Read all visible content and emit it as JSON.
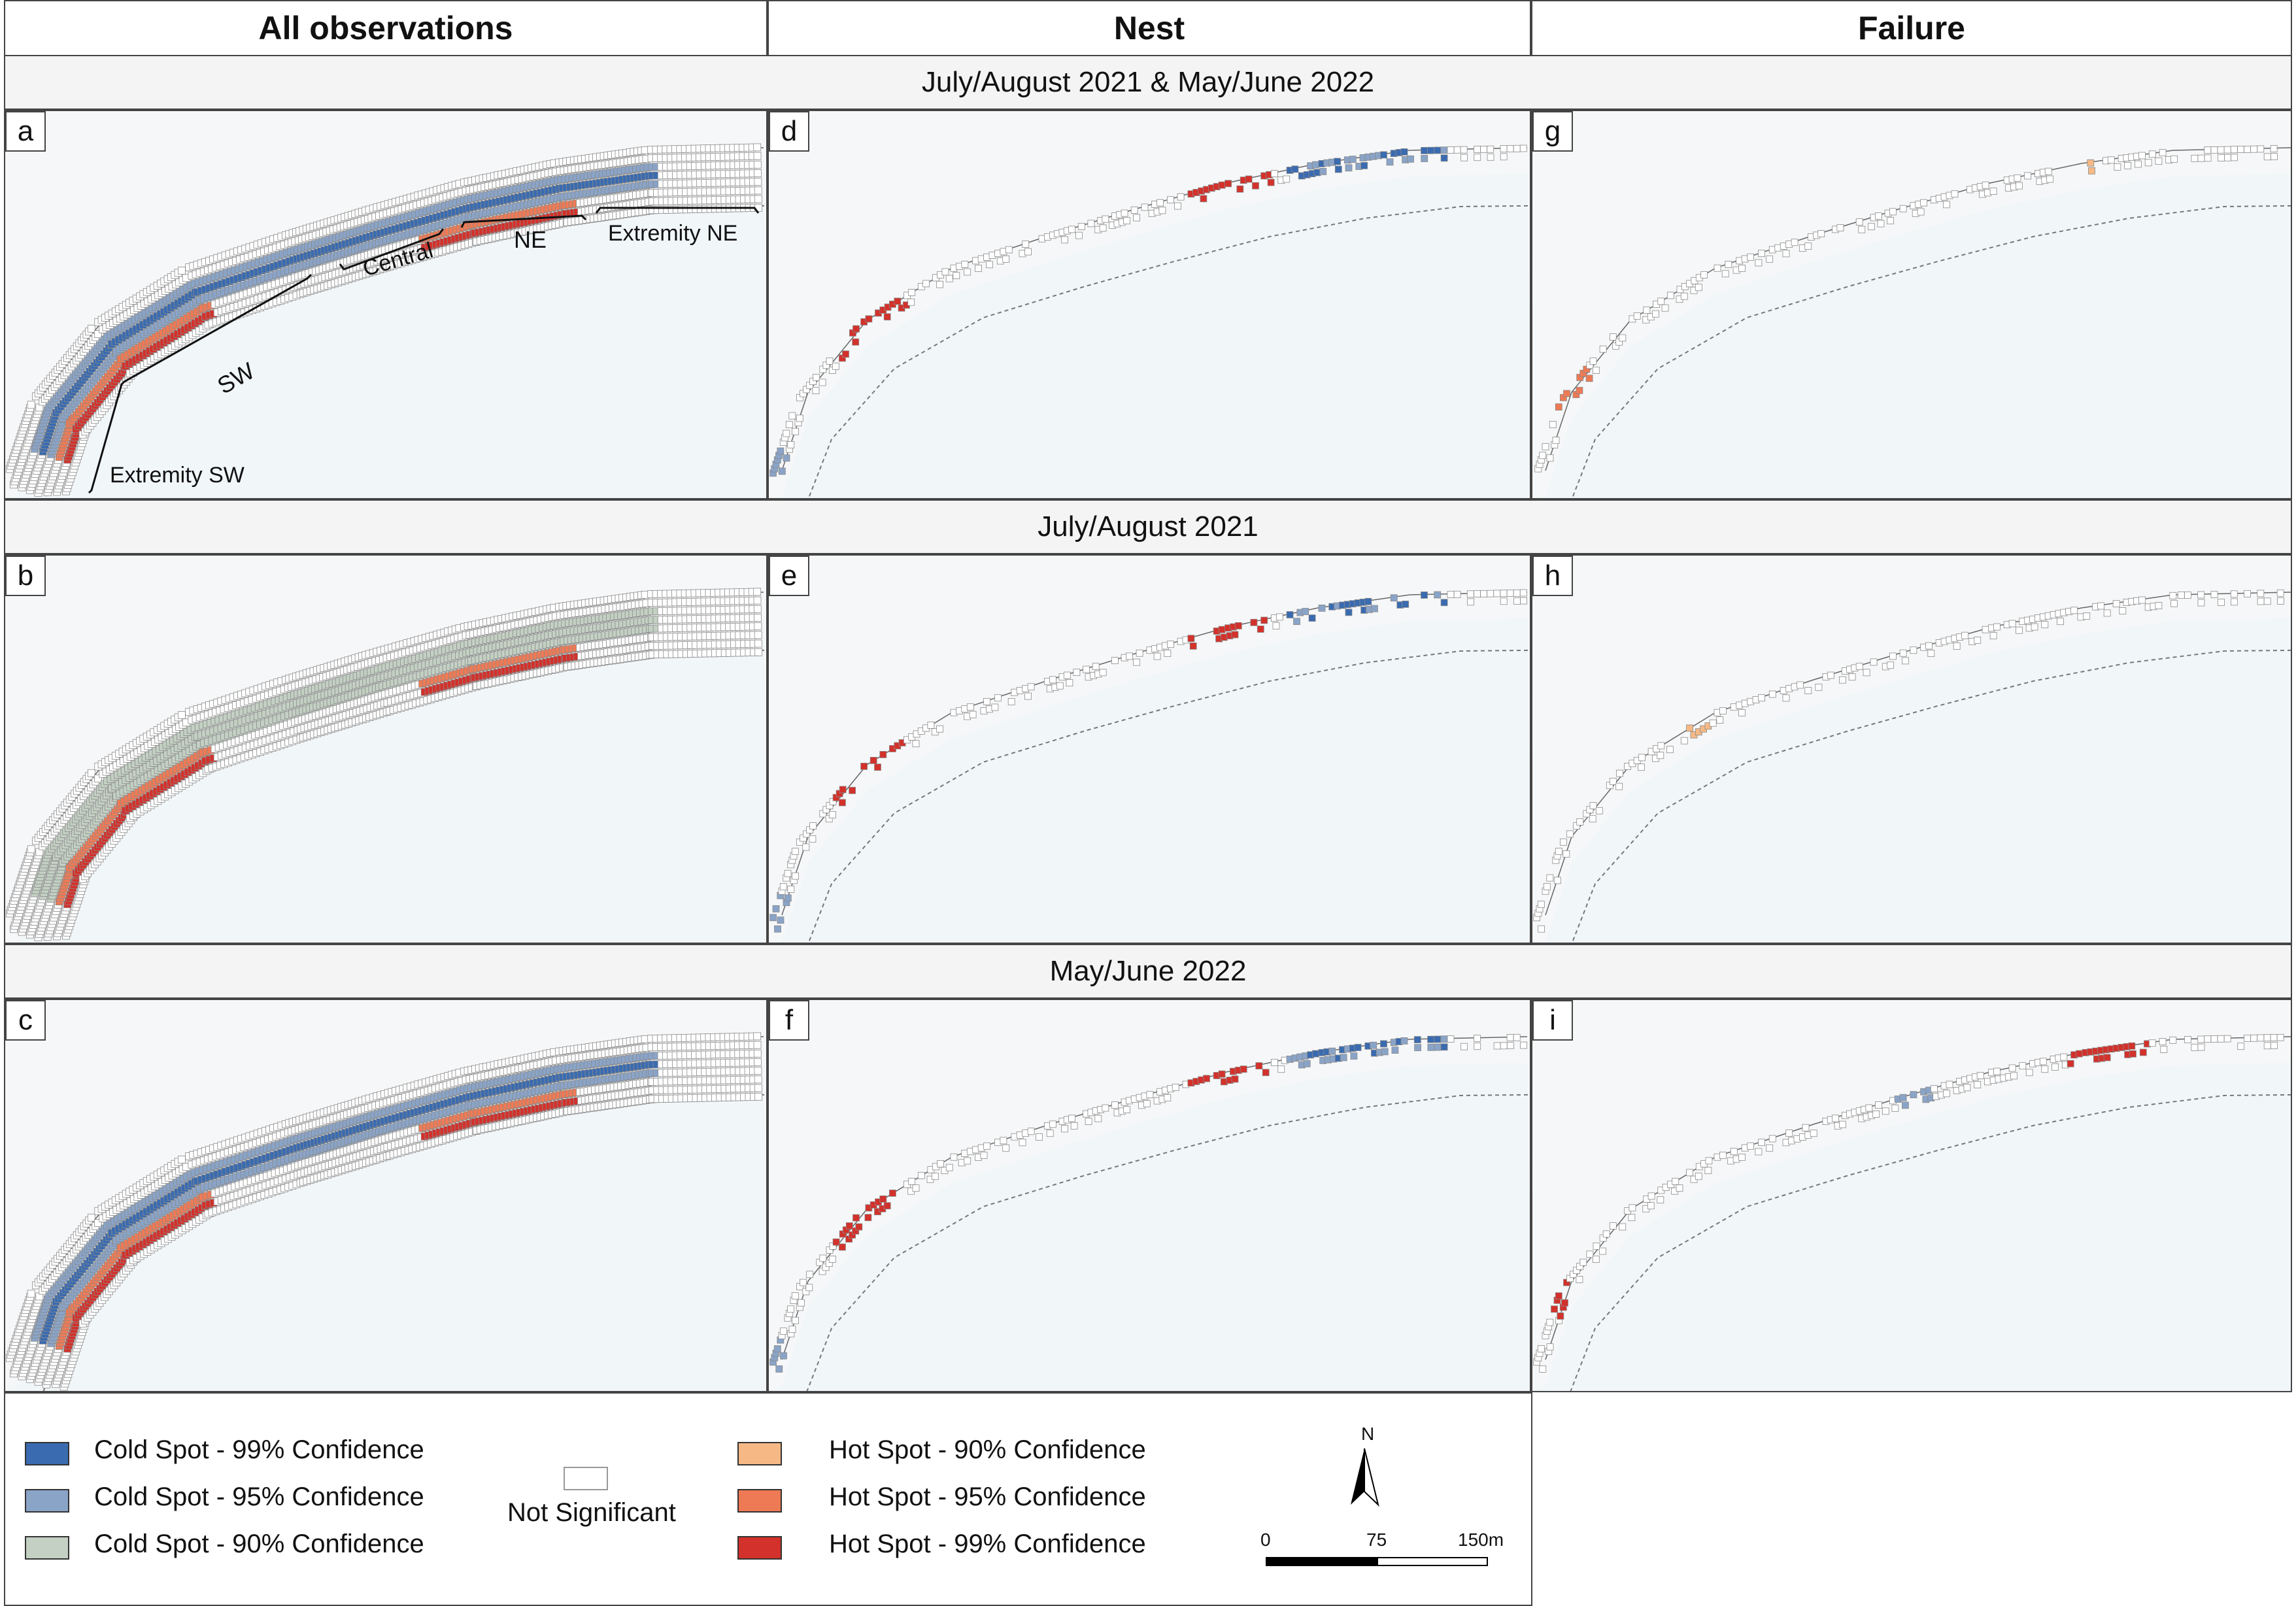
{
  "columns": [
    "All observations",
    "Nest",
    "Failure"
  ],
  "bands": [
    "July/August 2021 & May/June 2022",
    "July/August 2021",
    "May/June 2022"
  ],
  "panels": [
    {
      "label": "a",
      "kind": "all",
      "mode": "combined"
    },
    {
      "label": "d",
      "kind": "nest",
      "mode": "combined"
    },
    {
      "label": "g",
      "kind": "failure",
      "mode": "combined"
    },
    {
      "label": "b",
      "kind": "all",
      "mode": "2021"
    },
    {
      "label": "e",
      "kind": "nest",
      "mode": "2021"
    },
    {
      "label": "h",
      "kind": "failure",
      "mode": "2021"
    },
    {
      "label": "c",
      "kind": "all",
      "mode": "2022"
    },
    {
      "label": "f",
      "kind": "nest",
      "mode": "2022"
    },
    {
      "label": "i",
      "kind": "failure",
      "mode": "2022"
    }
  ],
  "annotations": {
    "sector_sw": "SW",
    "sector_central": "Central",
    "sector_ne": "NE",
    "sector_extremity_ne": "Extremity NE",
    "sector_extremity_sw": "Extremity SW"
  },
  "legend": {
    "cold99": "Cold Spot - 99% Confidence",
    "cold95": "Cold Spot - 95% Confidence",
    "cold90": "Cold Spot - 90% Confidence",
    "not_significant": "Not Significant",
    "hot90": "Hot Spot - 90% Confidence",
    "hot95": "Hot Spot - 95% Confidence",
    "hot99": "Hot Spot - 99% Confidence",
    "north": "N",
    "scale": [
      "0",
      "75",
      "150m"
    ]
  },
  "colors": {
    "cold99": "#3a6bb0",
    "cold95": "#8aa4c8",
    "cold90": "#c3d0c3",
    "not_significant": "#ffffff",
    "hot90": "#f6b986",
    "hot95": "#ee7a55",
    "hot99": "#d3312b",
    "sea": "#f1f6f9",
    "land": "#f6f7f8"
  }
}
